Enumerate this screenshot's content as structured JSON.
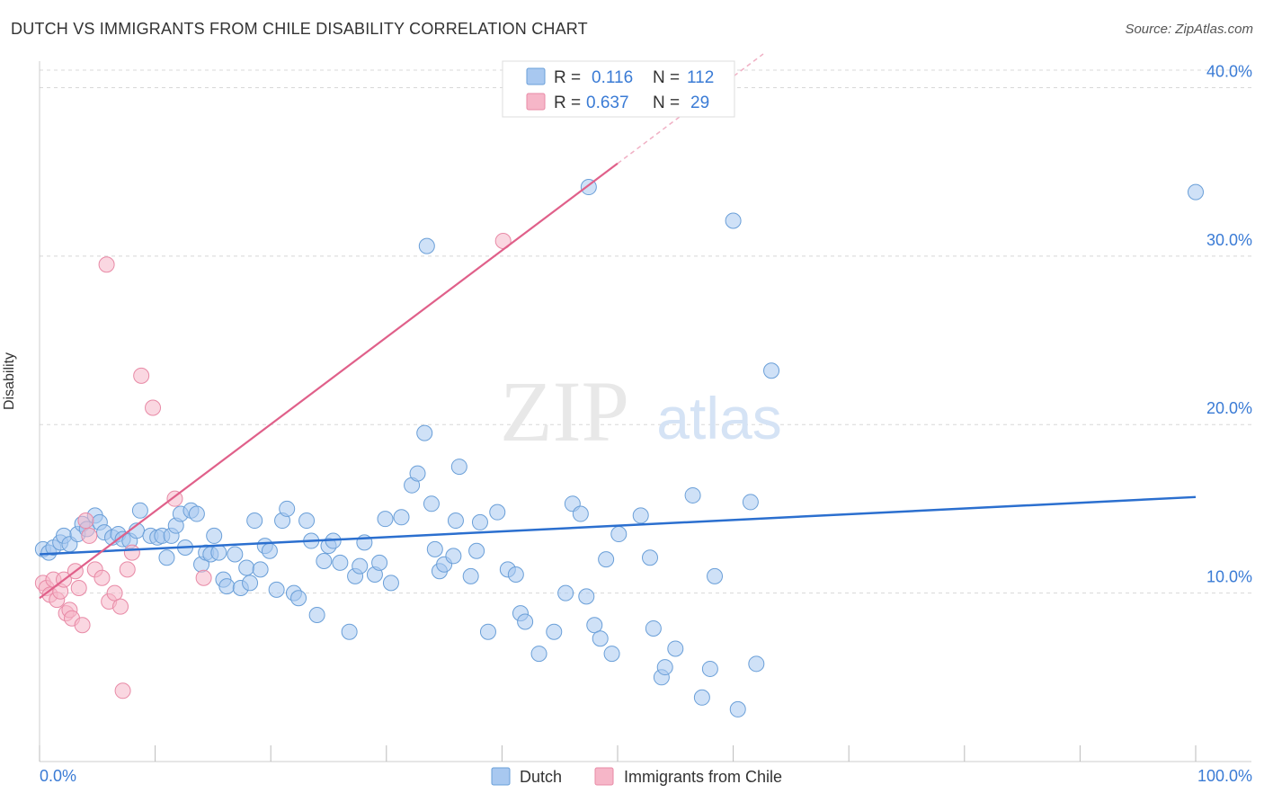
{
  "title": "DUTCH VS IMMIGRANTS FROM CHILE DISABILITY CORRELATION CHART",
  "source": "Source: ZipAtlas.com",
  "watermark": {
    "zip": "ZIP",
    "atlas": "atlas"
  },
  "colors": {
    "dutch_fill": "#a8c8f0",
    "dutch_stroke": "#6a9fd8",
    "dutch_line": "#2b6fcf",
    "chile_fill": "#f6b6c8",
    "chile_stroke": "#e88aa6",
    "chile_line": "#e0608a",
    "tick_text": "#3a7bd5",
    "grid": "#d8d8d8"
  },
  "legend": {
    "rows": [
      {
        "r_label": "R =",
        "r_value": "0.116",
        "n_label": "N =",
        "n_value": "112"
      },
      {
        "r_label": "R =",
        "r_value": "0.637",
        "n_label": "N =",
        "n_value": "29"
      }
    ]
  },
  "chart_data": {
    "type": "scatter",
    "title": "DUTCH VS IMMIGRANTS FROM CHILE DISABILITY CORRELATION CHART",
    "xlabel": "",
    "ylabel": "Disability",
    "xlim": [
      0,
      100
    ],
    "ylim": [
      0,
      42
    ],
    "x_tick_labels": [
      "0.0%",
      "100.0%"
    ],
    "y_ticks": [
      10,
      20,
      30,
      40
    ],
    "y_tick_labels": [
      "10.0%",
      "20.0%",
      "30.0%",
      "40.0%"
    ],
    "grid": true,
    "legend_position": "top-center",
    "series": [
      {
        "name": "Dutch",
        "trend": {
          "x": [
            0,
            100
          ],
          "y": [
            12.3,
            15.7
          ]
        },
        "points": [
          [
            0.3,
            12.6
          ],
          [
            0.8,
            12.4
          ],
          [
            1.2,
            12.7
          ],
          [
            1.8,
            13.0
          ],
          [
            2.1,
            13.4
          ],
          [
            2.6,
            12.9
          ],
          [
            3.3,
            13.5
          ],
          [
            3.7,
            14.1
          ],
          [
            4.1,
            13.8
          ],
          [
            4.8,
            14.6
          ],
          [
            5.2,
            14.2
          ],
          [
            5.6,
            13.6
          ],
          [
            6.3,
            13.3
          ],
          [
            6.8,
            13.5
          ],
          [
            7.2,
            13.2
          ],
          [
            7.8,
            13.1
          ],
          [
            8.4,
            13.7
          ],
          [
            8.7,
            14.9
          ],
          [
            9.6,
            13.4
          ],
          [
            10.2,
            13.3
          ],
          [
            10.6,
            13.4
          ],
          [
            11.0,
            12.1
          ],
          [
            11.4,
            13.4
          ],
          [
            11.8,
            14.0
          ],
          [
            12.2,
            14.7
          ],
          [
            12.6,
            12.7
          ],
          [
            13.1,
            14.9
          ],
          [
            13.6,
            14.7
          ],
          [
            14.0,
            11.7
          ],
          [
            14.4,
            12.4
          ],
          [
            14.8,
            12.3
          ],
          [
            15.1,
            13.4
          ],
          [
            15.5,
            12.4
          ],
          [
            15.9,
            10.8
          ],
          [
            16.2,
            10.4
          ],
          [
            16.9,
            12.3
          ],
          [
            17.4,
            10.3
          ],
          [
            17.9,
            11.5
          ],
          [
            18.2,
            10.6
          ],
          [
            18.6,
            14.3
          ],
          [
            19.1,
            11.4
          ],
          [
            19.5,
            12.8
          ],
          [
            19.9,
            12.5
          ],
          [
            20.5,
            10.2
          ],
          [
            21.0,
            14.3
          ],
          [
            21.4,
            15.0
          ],
          [
            22.0,
            10.0
          ],
          [
            22.4,
            9.7
          ],
          [
            23.1,
            14.3
          ],
          [
            23.5,
            13.1
          ],
          [
            24.0,
            8.7
          ],
          [
            24.6,
            11.9
          ],
          [
            25.0,
            12.8
          ],
          [
            25.4,
            13.1
          ],
          [
            26.0,
            11.8
          ],
          [
            26.8,
            7.7
          ],
          [
            27.3,
            11.0
          ],
          [
            27.7,
            11.6
          ],
          [
            28.1,
            13.0
          ],
          [
            29.0,
            11.1
          ],
          [
            29.4,
            11.8
          ],
          [
            29.9,
            14.4
          ],
          [
            30.4,
            10.6
          ],
          [
            31.3,
            14.5
          ],
          [
            32.2,
            16.4
          ],
          [
            32.7,
            17.1
          ],
          [
            33.3,
            19.5
          ],
          [
            33.9,
            15.3
          ],
          [
            34.2,
            12.6
          ],
          [
            34.6,
            11.3
          ],
          [
            35.0,
            11.7
          ],
          [
            35.8,
            12.2
          ],
          [
            36.0,
            14.3
          ],
          [
            36.3,
            17.5
          ],
          [
            37.3,
            11.0
          ],
          [
            37.8,
            12.5
          ],
          [
            38.1,
            14.2
          ],
          [
            38.8,
            7.7
          ],
          [
            39.6,
            14.8
          ],
          [
            40.5,
            11.4
          ],
          [
            41.2,
            11.1
          ],
          [
            41.6,
            8.8
          ],
          [
            42.0,
            8.3
          ],
          [
            43.2,
            6.4
          ],
          [
            44.5,
            7.7
          ],
          [
            45.5,
            10.0
          ],
          [
            46.1,
            15.3
          ],
          [
            46.8,
            14.7
          ],
          [
            47.3,
            9.8
          ],
          [
            48.0,
            8.1
          ],
          [
            48.5,
            7.3
          ],
          [
            49.0,
            12.0
          ],
          [
            49.5,
            6.4
          ],
          [
            50.1,
            13.5
          ],
          [
            52.0,
            14.6
          ],
          [
            52.8,
            12.1
          ],
          [
            53.1,
            7.9
          ],
          [
            53.8,
            5.0
          ],
          [
            54.1,
            5.6
          ],
          [
            55.0,
            6.7
          ],
          [
            56.5,
            15.8
          ],
          [
            57.3,
            3.8
          ],
          [
            58.0,
            5.5
          ],
          [
            58.4,
            11.0
          ],
          [
            60.4,
            3.1
          ],
          [
            61.5,
            15.4
          ],
          [
            62.0,
            5.8
          ],
          [
            63.3,
            23.2
          ],
          [
            33.5,
            30.6
          ],
          [
            47.5,
            34.1
          ],
          [
            60.0,
            32.1
          ],
          [
            100.0,
            33.8
          ]
        ]
      },
      {
        "name": "Immigrants from Chile",
        "trend": {
          "x": [
            0,
            50
          ],
          "y": [
            9.7,
            35.5
          ]
        },
        "points": [
          [
            0.3,
            10.6
          ],
          [
            0.6,
            10.3
          ],
          [
            0.9,
            9.9
          ],
          [
            1.2,
            10.8
          ],
          [
            1.5,
            9.6
          ],
          [
            1.8,
            10.1
          ],
          [
            2.1,
            10.8
          ],
          [
            2.3,
            8.8
          ],
          [
            2.6,
            9.0
          ],
          [
            2.8,
            8.5
          ],
          [
            3.1,
            11.3
          ],
          [
            3.4,
            10.3
          ],
          [
            3.7,
            8.1
          ],
          [
            4.0,
            14.3
          ],
          [
            4.3,
            13.4
          ],
          [
            4.8,
            11.4
          ],
          [
            5.4,
            10.9
          ],
          [
            6.0,
            9.5
          ],
          [
            6.5,
            10.0
          ],
          [
            7.0,
            9.2
          ],
          [
            7.2,
            4.2
          ],
          [
            7.6,
            11.4
          ],
          [
            8.0,
            12.4
          ],
          [
            8.8,
            22.9
          ],
          [
            9.8,
            21.0
          ],
          [
            11.7,
            15.6
          ],
          [
            14.2,
            10.9
          ],
          [
            5.8,
            29.5
          ],
          [
            40.1,
            30.9
          ]
        ]
      }
    ]
  },
  "bottom_legend": {
    "dutch": "Dutch",
    "chile": "Immigrants from Chile"
  }
}
